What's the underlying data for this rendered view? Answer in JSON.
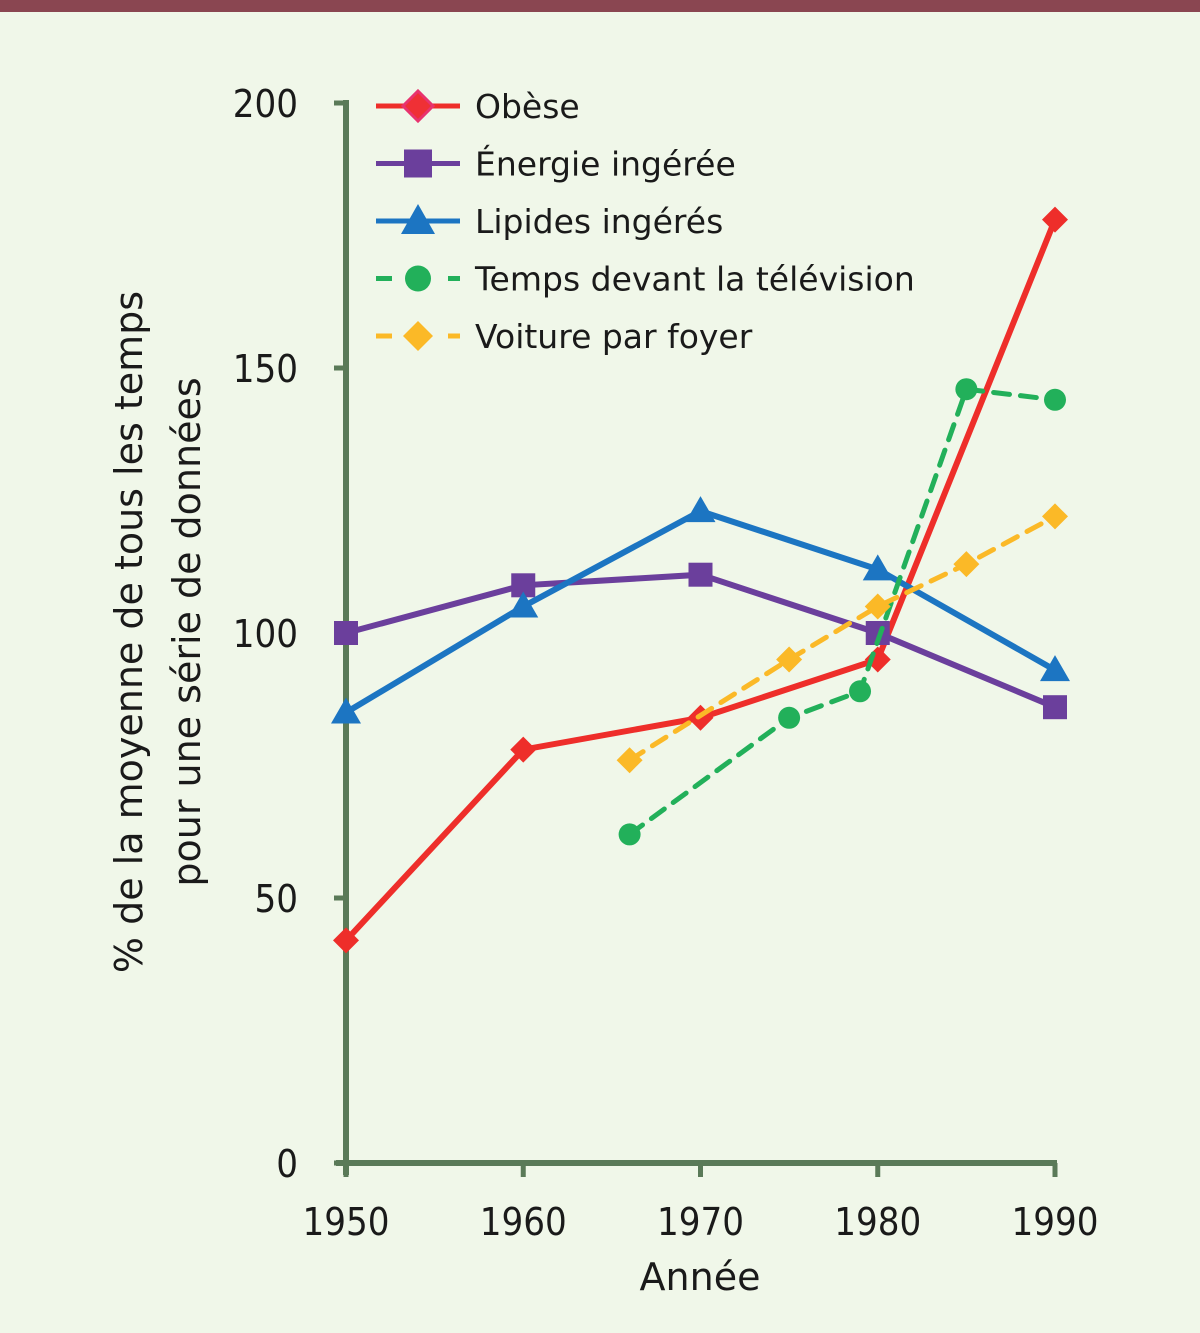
{
  "header": {
    "bar_color": "#8a4651"
  },
  "chart_data": {
    "type": "line",
    "title": "",
    "xlabel": "Année",
    "ylabel_lines": [
      "% de la moyenne de tous les temps",
      "pour une série de données"
    ],
    "xlim": [
      1950,
      1990
    ],
    "ylim": [
      0,
      200
    ],
    "xticks": [
      1950,
      1960,
      1970,
      1980,
      1990
    ],
    "yticks": [
      0,
      50,
      100,
      150,
      200
    ],
    "grid": false,
    "legend_position": "top-left",
    "axis_color": "#5a7a58",
    "background": "#f0f7e9",
    "series": [
      {
        "name": "Obèse",
        "color": "#ee2e2a",
        "marker": "diamond",
        "dash": false,
        "x": [
          1950,
          1960,
          1970,
          1980,
          1990
        ],
        "y": [
          42,
          78,
          84,
          95,
          178
        ]
      },
      {
        "name": "Énergie ingérée",
        "color": "#6b3f9c",
        "marker": "square",
        "dash": false,
        "x": [
          1950,
          1960,
          1970,
          1980,
          1990
        ],
        "y": [
          100,
          109,
          111,
          100,
          86
        ]
      },
      {
        "name": "Lipides ingérés",
        "color": "#1c75c2",
        "marker": "triangle",
        "dash": false,
        "x": [
          1950,
          1960,
          1970,
          1980,
          1990
        ],
        "y": [
          85,
          105,
          123,
          112,
          93
        ]
      },
      {
        "name": "Temps devant la télévision",
        "color": "#22b05a",
        "marker": "circle",
        "dash": true,
        "x": [
          1966,
          1975,
          1979,
          1985,
          1990
        ],
        "y": [
          62,
          84,
          89,
          146,
          144
        ]
      },
      {
        "name": "Voiture par foyer",
        "color": "#fbb927",
        "marker": "diamond",
        "dash": true,
        "x": [
          1966,
          1975,
          1980,
          1985,
          1990
        ],
        "y": [
          76,
          95,
          105,
          113,
          122
        ]
      }
    ]
  }
}
